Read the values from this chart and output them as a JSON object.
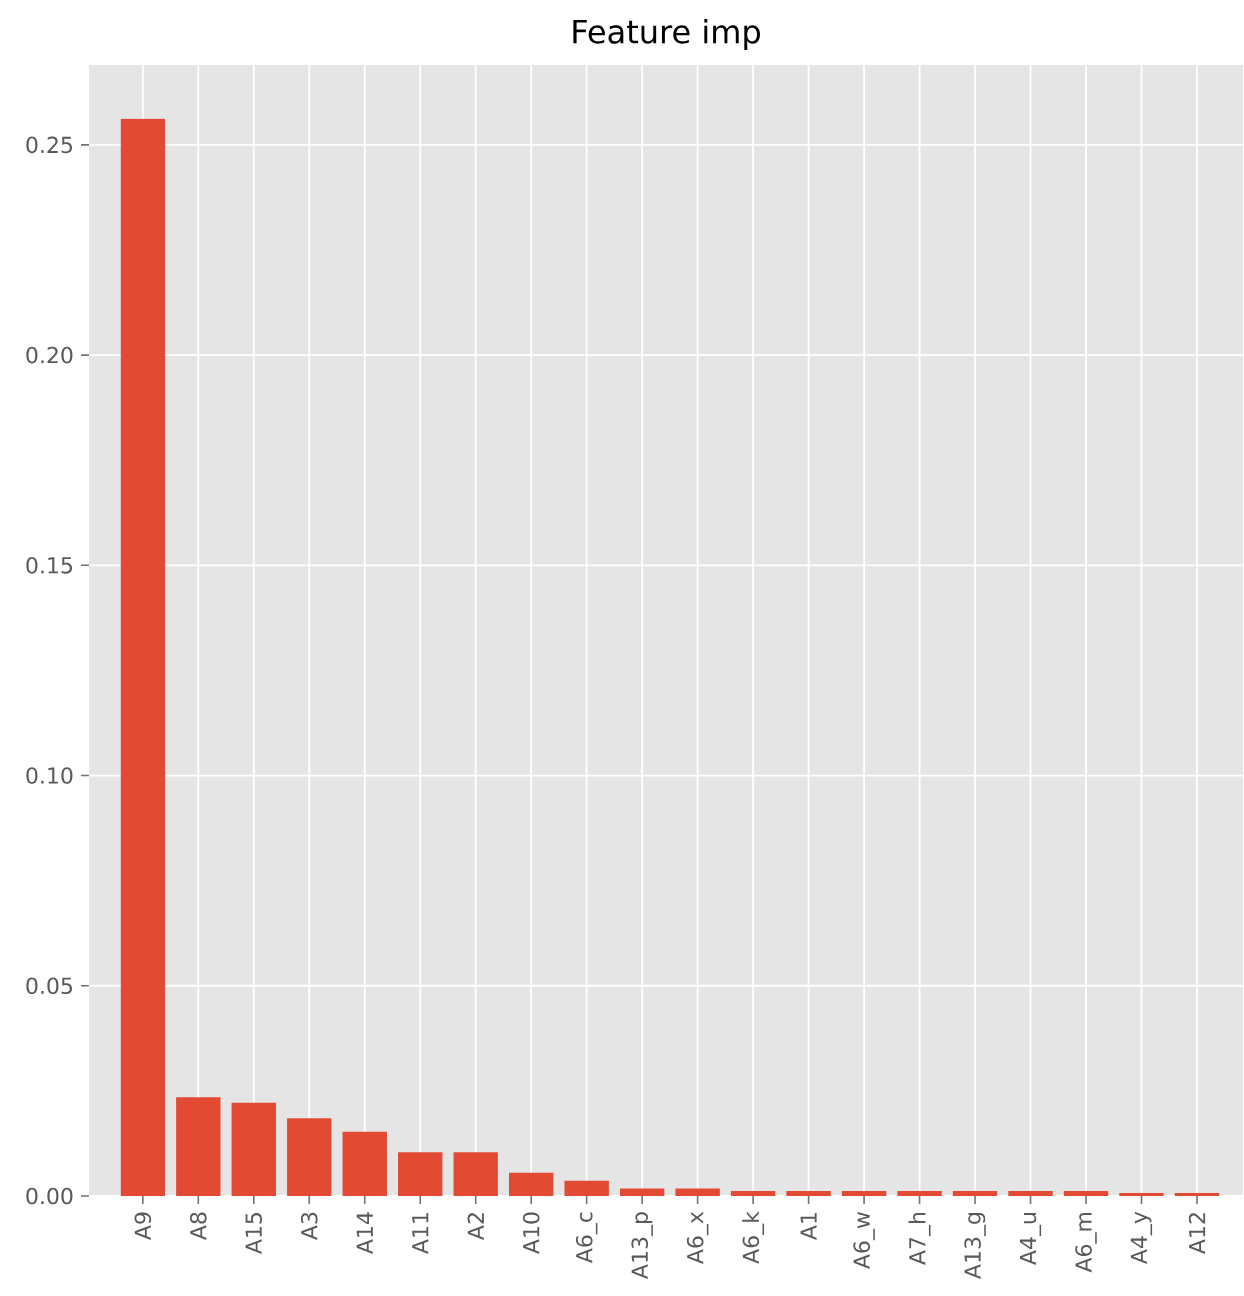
{
  "chart_data": {
    "type": "bar",
    "title": "Feature imp",
    "categories": [
      "A9",
      "A8",
      "A15",
      "A3",
      "A14",
      "A11",
      "A2",
      "A10",
      "A6_c",
      "A13_p",
      "A6_x",
      "A6_k",
      "A1",
      "A6_w",
      "A7_h",
      "A13_g",
      "A4_u",
      "A6_m",
      "A4_y",
      "A12"
    ],
    "values": [
      0.2562,
      0.0235,
      0.0222,
      0.0185,
      0.0153,
      0.0104,
      0.0104,
      0.0055,
      0.0036,
      0.0018,
      0.0018,
      0.0012,
      0.0012,
      0.0012,
      0.0012,
      0.0012,
      0.0012,
      0.0012,
      0.0007,
      0.0007
    ],
    "color": "#e24a33",
    "ylim": [
      0,
      0.269
    ],
    "yticks": [
      {
        "value": 0,
        "label": "0.00"
      },
      {
        "value": 0.05,
        "label": "0.05"
      },
      {
        "value": 0.1,
        "label": "0.10"
      },
      {
        "value": 0.15,
        "label": "0.15"
      },
      {
        "value": 0.2,
        "label": "0.20"
      },
      {
        "value": 0.25,
        "label": "0.25"
      }
    ],
    "grid": true
  }
}
